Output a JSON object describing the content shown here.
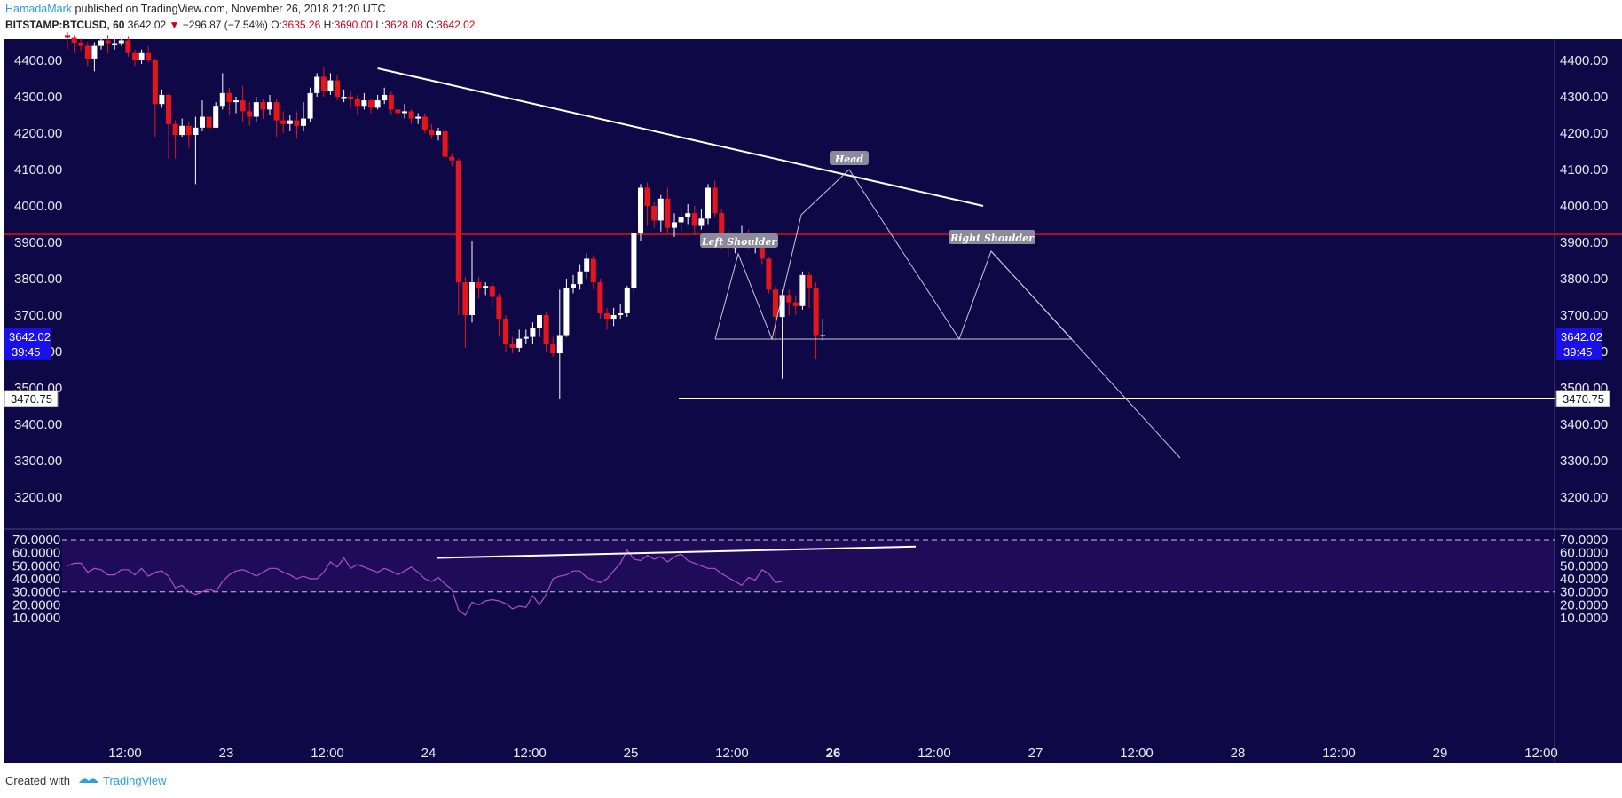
{
  "header": {
    "author": "HamadaMark",
    "published": " published on TradingView.com, November 26, 2018 21:20 UTC",
    "symbol": "BITSTAMP:BTCUSD, 60",
    "last": "3642.02",
    "change_icon": "triangle-down",
    "change": "−296.87 (−7.54%)",
    "o_label": "O:",
    "o": "3635.26",
    "h_label": "H:",
    "h": "3690.00",
    "l_label": "L:",
    "l": "3628.08",
    "c_label": "C:",
    "c": "3642.02"
  },
  "footer": {
    "created": "Created with",
    "brand": "TradingView"
  },
  "colors": {
    "bg": "#0e0946",
    "rsi_band": "#1e0c59",
    "up": "#ffffff",
    "down": "#e8141b",
    "resistance": "#a4101e",
    "rsi_line": "#b04fc8",
    "price_badge": "#1a10e8"
  },
  "chart_data": [
    {
      "type": "candlestick",
      "ylim": [
        3130,
        4460
      ],
      "y_ticks": [
        "4400.00",
        "4300.00",
        "4200.00",
        "4100.00",
        "4000.00",
        "3900.00",
        "3800.00",
        "3700.00",
        "3600.00",
        "3500.00",
        "3400.00",
        "3300.00",
        "3200.00"
      ],
      "x_ticks": [
        {
          "label": "12:00",
          "bold": false
        },
        {
          "label": "23",
          "bold": false
        },
        {
          "label": "12:00",
          "bold": false
        },
        {
          "label": "24",
          "bold": false
        },
        {
          "label": "12:00",
          "bold": false
        },
        {
          "label": "25",
          "bold": false
        },
        {
          "label": "12:00",
          "bold": false
        },
        {
          "label": "26",
          "bold": true
        },
        {
          "label": "12:00",
          "bold": false
        },
        {
          "label": "27",
          "bold": false
        },
        {
          "label": "12:00",
          "bold": false
        },
        {
          "label": "28",
          "bold": false
        },
        {
          "label": "12:00",
          "bold": false
        },
        {
          "label": "29",
          "bold": false
        },
        {
          "label": "12:00",
          "bold": false
        }
      ],
      "last_price": "3642.02",
      "countdown": "39:45",
      "support_label": "3470.75",
      "resistance_level": 3922,
      "candles": [
        [
          4470,
          4462,
          4478,
          4430
        ],
        [
          4462,
          4448,
          4470,
          4420
        ],
        [
          4448,
          4440,
          4460,
          4425
        ],
        [
          4440,
          4405,
          4450,
          4385
        ],
        [
          4405,
          4440,
          4450,
          4370
        ],
        [
          4440,
          4455,
          4465,
          4430
        ],
        [
          4455,
          4445,
          4470,
          4420
        ],
        [
          4445,
          4445,
          4465,
          4430
        ],
        [
          4445,
          4455,
          4470,
          4440
        ],
        [
          4455,
          4420,
          4465,
          4410
        ],
        [
          4420,
          4400,
          4430,
          4385
        ],
        [
          4400,
          4420,
          4430,
          4390
        ],
        [
          4420,
          4400,
          4440,
          4395
        ],
        [
          4400,
          4280,
          4405,
          4190
        ],
        [
          4280,
          4305,
          4320,
          4270
        ],
        [
          4305,
          4225,
          4310,
          4130
        ],
        [
          4225,
          4195,
          4235,
          4130
        ],
        [
          4195,
          4220,
          4240,
          4190
        ],
        [
          4220,
          4195,
          4230,
          4160
        ],
        [
          4195,
          4215,
          4245,
          4060
        ],
        [
          4215,
          4245,
          4290,
          4205
        ],
        [
          4245,
          4215,
          4260,
          4200
        ],
        [
          4215,
          4275,
          4285,
          4215
        ],
        [
          4275,
          4310,
          4365,
          4265
        ],
        [
          4310,
          4285,
          4325,
          4250
        ],
        [
          4285,
          4290,
          4300,
          4255
        ],
        [
          4290,
          4260,
          4330,
          4230
        ],
        [
          4260,
          4245,
          4285,
          4220
        ],
        [
          4245,
          4285,
          4300,
          4230
        ],
        [
          4285,
          4265,
          4295,
          4240
        ],
        [
          4265,
          4285,
          4305,
          4250
        ],
        [
          4285,
          4235,
          4295,
          4190
        ],
        [
          4235,
          4225,
          4260,
          4200
        ],
        [
          4225,
          4235,
          4250,
          4205
        ],
        [
          4235,
          4220,
          4260,
          4185
        ],
        [
          4220,
          4240,
          4285,
          4205
        ],
        [
          4240,
          4310,
          4325,
          4230
        ],
        [
          4310,
          4355,
          4365,
          4300
        ],
        [
          4355,
          4315,
          4380,
          4300
        ],
        [
          4315,
          4345,
          4365,
          4305
        ],
        [
          4345,
          4300,
          4360,
          4290
        ],
        [
          4300,
          4300,
          4320,
          4285
        ],
        [
          4300,
          4295,
          4315,
          4270
        ],
        [
          4295,
          4275,
          4305,
          4250
        ],
        [
          4275,
          4290,
          4310,
          4265
        ],
        [
          4290,
          4270,
          4295,
          4255
        ],
        [
          4270,
          4290,
          4305,
          4265
        ],
        [
          4290,
          4305,
          4325,
          4280
        ],
        [
          4305,
          4265,
          4315,
          4250
        ],
        [
          4265,
          4255,
          4275,
          4220
        ],
        [
          4255,
          4260,
          4280,
          4240
        ],
        [
          4260,
          4240,
          4265,
          4225
        ],
        [
          4240,
          4245,
          4255,
          4225
        ],
        [
          4245,
          4210,
          4255,
          4200
        ],
        [
          4210,
          4195,
          4225,
          4185
        ],
        [
          4195,
          4205,
          4215,
          4180
        ],
        [
          4205,
          4135,
          4215,
          4115
        ],
        [
          4135,
          4125,
          4145,
          4110
        ],
        [
          4125,
          3790,
          4130,
          3700
        ],
        [
          3790,
          3700,
          3805,
          3610
        ],
        [
          3700,
          3790,
          3905,
          3680
        ],
        [
          3790,
          3775,
          3805,
          3745
        ],
        [
          3775,
          3780,
          3790,
          3755
        ],
        [
          3780,
          3750,
          3790,
          3720
        ],
        [
          3750,
          3690,
          3760,
          3640
        ],
        [
          3690,
          3620,
          3700,
          3600
        ],
        [
          3620,
          3610,
          3640,
          3595
        ],
        [
          3610,
          3635,
          3660,
          3600
        ],
        [
          3635,
          3640,
          3660,
          3620
        ],
        [
          3640,
          3665,
          3680,
          3620
        ],
        [
          3665,
          3700,
          3700,
          3640
        ],
        [
          3700,
          3620,
          3710,
          3600
        ],
        [
          3620,
          3595,
          3640,
          3585
        ],
        [
          3595,
          3645,
          3770,
          3470
        ],
        [
          3645,
          3775,
          3800,
          3640
        ],
        [
          3775,
          3785,
          3810,
          3760
        ],
        [
          3785,
          3820,
          3840,
          3770
        ],
        [
          3820,
          3855,
          3870,
          3800
        ],
        [
          3855,
          3790,
          3865,
          3770
        ],
        [
          3790,
          3705,
          3800,
          3690
        ],
        [
          3705,
          3690,
          3720,
          3660
        ],
        [
          3690,
          3700,
          3720,
          3670
        ],
        [
          3700,
          3705,
          3730,
          3690
        ],
        [
          3705,
          3775,
          3780,
          3695
        ],
        [
          3775,
          3925,
          3930,
          3760
        ],
        [
          3925,
          4050,
          4060,
          3905
        ],
        [
          4050,
          4000,
          4065,
          3945
        ],
        [
          4000,
          3960,
          4010,
          3940
        ],
        [
          3960,
          4020,
          4030,
          3930
        ],
        [
          4020,
          3940,
          4050,
          3925
        ],
        [
          3940,
          3955,
          3980,
          3915
        ],
        [
          3955,
          3970,
          3995,
          3930
        ],
        [
          3970,
          3980,
          4005,
          3950
        ],
        [
          3980,
          3945,
          4000,
          3920
        ],
        [
          3945,
          3965,
          3990,
          3935
        ],
        [
          3965,
          4050,
          4060,
          3950
        ],
        [
          4050,
          3980,
          4070,
          3970
        ],
        [
          3980,
          3925,
          3990,
          3880
        ],
        [
          3925,
          3885,
          3935,
          3860
        ],
        [
          3885,
          3905,
          3915,
          3870
        ],
        [
          3905,
          3925,
          3945,
          3890
        ],
        [
          3925,
          3890,
          3935,
          3880
        ],
        [
          3890,
          3890,
          3910,
          3870
        ],
        [
          3890,
          3855,
          3895,
          3840
        ],
        [
          3855,
          3770,
          3860,
          3760
        ],
        [
          3770,
          3695,
          3780,
          3630
        ],
        [
          3695,
          3755,
          3770,
          3525
        ],
        [
          3755,
          3735,
          3770,
          3700
        ],
        [
          3735,
          3725,
          3755,
          3700
        ],
        [
          3725,
          3810,
          3820,
          3715
        ],
        [
          3810,
          3775,
          3820,
          3720
        ],
        [
          3775,
          3645,
          3790,
          3580
        ],
        [
          3645,
          3645,
          3690,
          3630
        ]
      ],
      "annotations": [
        {
          "label": "Left Shoulder"
        },
        {
          "label": "Head"
        },
        {
          "label": "Right Shoulder"
        }
      ]
    },
    {
      "type": "line",
      "name": "RSI",
      "ylim": [
        7,
        73
      ],
      "y_ticks": [
        "70.0000",
        "60.0000",
        "50.0000",
        "40.0000",
        "30.0000",
        "20.0000",
        "10.0000"
      ],
      "bands": [
        30,
        70
      ],
      "values": [
        50,
        52,
        52,
        45,
        48,
        47,
        43,
        43,
        47,
        47,
        43,
        48,
        42,
        45,
        46,
        42,
        33,
        35,
        30,
        28,
        30,
        32,
        30,
        38,
        43,
        46,
        47,
        45,
        42,
        45,
        48,
        48,
        45,
        43,
        40,
        42,
        40,
        40,
        45,
        53,
        49,
        56,
        48,
        51,
        49,
        47,
        45,
        48,
        46,
        43,
        46,
        49,
        45,
        40,
        38,
        41,
        36,
        32,
        16,
        12,
        22,
        20,
        23,
        24,
        23,
        21,
        17,
        19,
        18,
        27,
        20,
        28,
        40,
        42,
        43,
        46,
        46,
        41,
        39,
        37,
        40,
        46,
        52,
        62,
        55,
        54,
        58,
        55,
        57,
        53,
        57,
        59,
        54,
        52,
        50,
        48,
        48,
        44,
        41,
        38,
        35,
        41,
        39,
        47,
        44,
        37,
        38
      ]
    }
  ]
}
